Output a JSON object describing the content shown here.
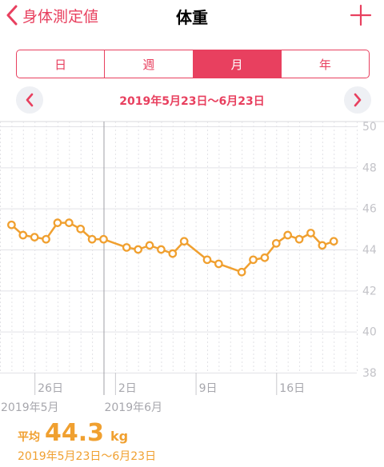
{
  "nav": {
    "back_label": "身体測定値",
    "title": "体重",
    "back_icon": "chevron-left-icon",
    "add_icon": "plus-icon",
    "accent_color": "#e8405f"
  },
  "segments": [
    {
      "label": "日",
      "active": false
    },
    {
      "label": "週",
      "active": false
    },
    {
      "label": "月",
      "active": true
    },
    {
      "label": "年",
      "active": false
    }
  ],
  "range": {
    "label": "2019年5月23日〜6月23日",
    "prev_icon": "chevron-left-icon",
    "next_icon": "chevron-right-icon"
  },
  "average": {
    "label": "平均",
    "value": "44.3",
    "unit": "kg",
    "range": "2019年5月23日〜6月23日",
    "color": "#f0a030"
  },
  "chart_data": {
    "type": "line",
    "color": "#f0a030",
    "x_ticks": [
      {
        "label": "26日",
        "day": 26
      },
      {
        "label": "2日",
        "day": 33
      },
      {
        "label": "9日",
        "day": 40
      },
      {
        "label": "16日",
        "day": 47
      }
    ],
    "month_labels": [
      {
        "label": "2019年5月",
        "day": 23
      },
      {
        "label": "2019年6月",
        "day": 32
      }
    ],
    "xlim": [
      23,
      54
    ],
    "y_ticks": [
      38,
      40,
      42,
      44,
      46,
      48,
      50
    ],
    "ylim": [
      38,
      50
    ],
    "grid": true,
    "x": [
      24,
      25,
      26,
      27,
      28,
      29,
      30,
      31,
      32,
      34,
      35,
      36,
      37,
      38,
      39,
      41,
      42,
      44,
      45,
      46,
      47,
      48,
      49,
      50,
      51,
      52
    ],
    "y": [
      45.2,
      44.7,
      44.6,
      44.5,
      45.3,
      45.3,
      45.0,
      44.5,
      44.5,
      44.1,
      44.0,
      44.2,
      44.0,
      43.8,
      44.4,
      43.5,
      43.3,
      42.9,
      43.5,
      43.6,
      44.3,
      44.7,
      44.5,
      44.8,
      44.2,
      44.4
    ]
  }
}
